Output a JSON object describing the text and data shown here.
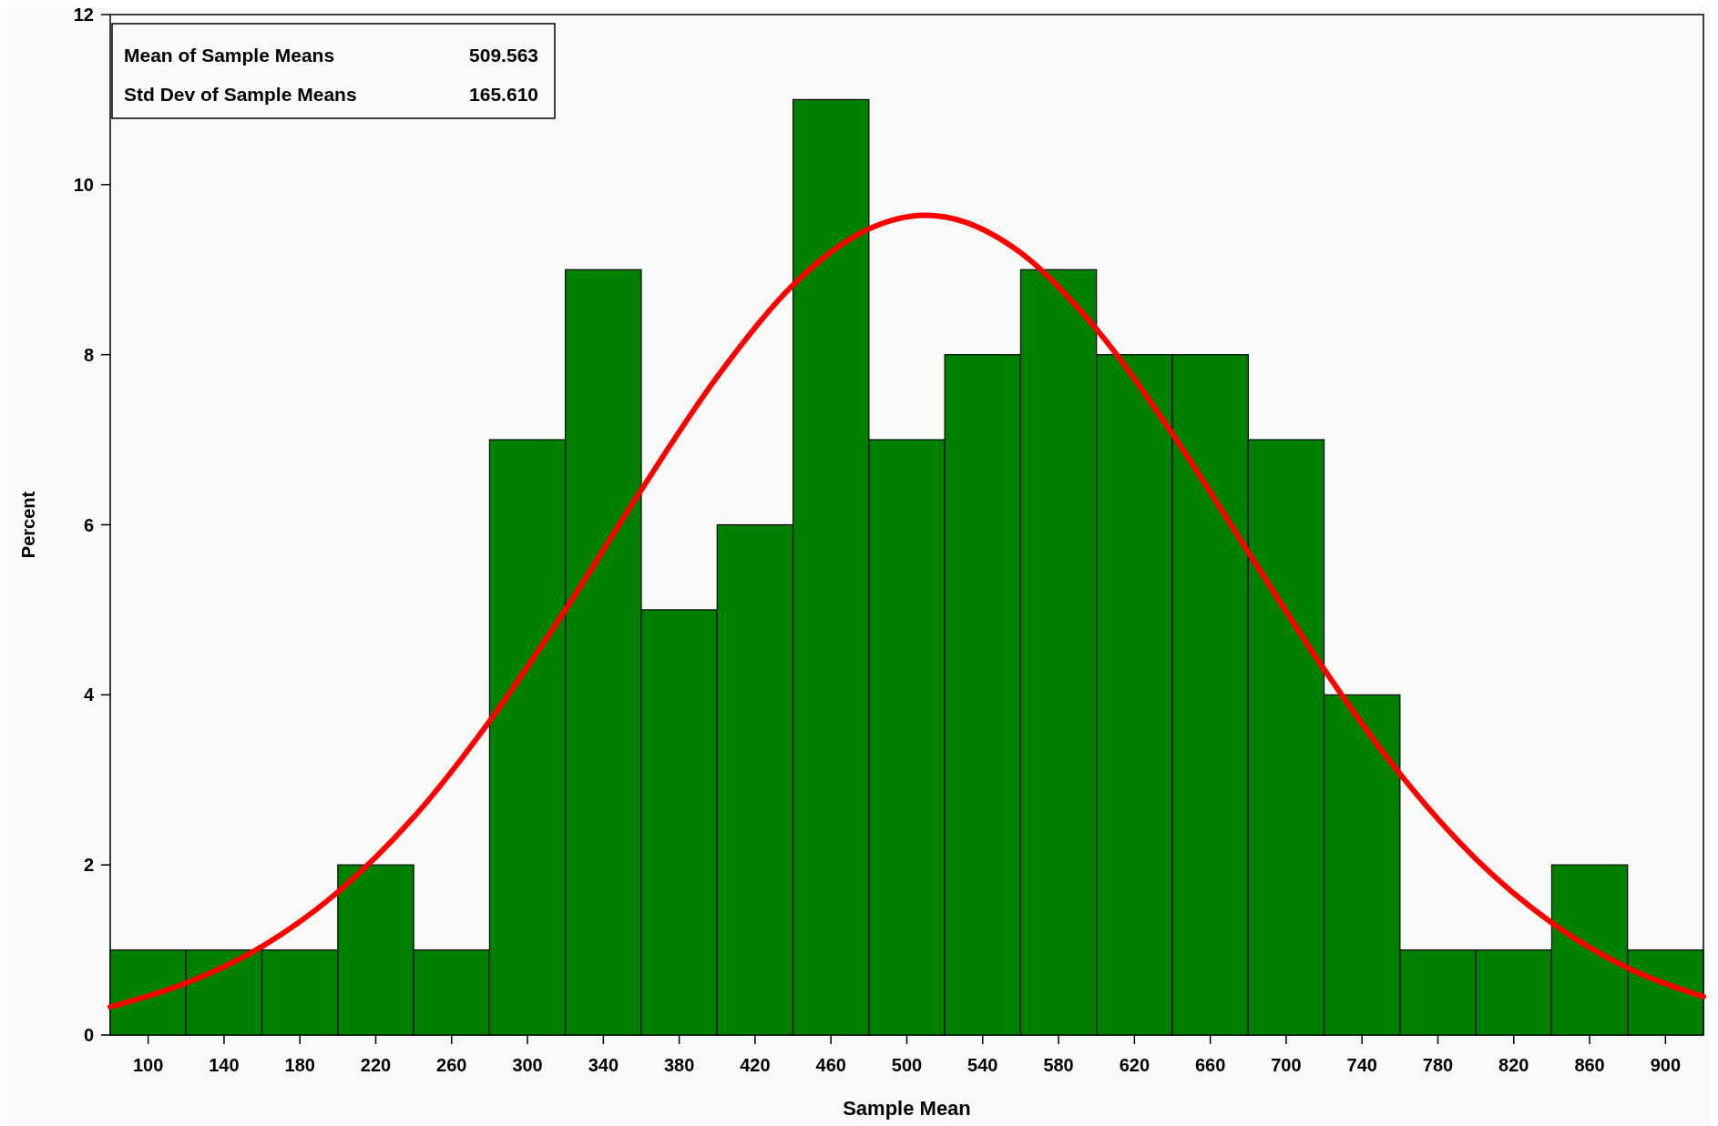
{
  "chart_data": {
    "type": "histogram",
    "xlabel": "Sample Mean",
    "ylabel": "Percent",
    "bins": [
      80,
      120,
      160,
      200,
      240,
      280,
      320,
      360,
      400,
      440,
      480,
      520,
      560,
      600,
      640,
      680,
      720,
      760,
      800,
      840,
      880,
      920
    ],
    "values": [
      1,
      1,
      1,
      2,
      1,
      7,
      9,
      5,
      6,
      11,
      7,
      8,
      9,
      8,
      8,
      7,
      4,
      1,
      1,
      2,
      1
    ],
    "color": "#008000",
    "series": [
      {
        "type": "line",
        "color": "#ff0000",
        "x": [
          80,
          120,
          160,
          200,
          240,
          280,
          320,
          360,
          400,
          440,
          480,
          509.6,
          520,
          560,
          600,
          640,
          680,
          720,
          760,
          800,
          840,
          880,
          920
        ],
        "values": [
          0.33,
          0.61,
          1.04,
          1.68,
          2.56,
          3.69,
          5.0,
          6.41,
          7.74,
          8.82,
          9.48,
          9.64,
          9.62,
          9.2,
          8.3,
          7.07,
          5.68,
          4.3,
          3.07,
          2.07,
          1.32,
          0.79,
          0.45
        ]
      }
    ],
    "xlim": [
      80,
      920
    ],
    "ylim": [
      0,
      12
    ],
    "xticks": [
      100,
      140,
      180,
      220,
      260,
      300,
      340,
      380,
      420,
      460,
      500,
      540,
      580,
      620,
      660,
      700,
      740,
      780,
      820,
      860,
      900
    ],
    "yticks": [
      0,
      2,
      4,
      6,
      8,
      10,
      12
    ],
    "annotations": [
      "Mean of Sample Means",
      "509.563",
      "Std Dev of Sample Means",
      "165.610"
    ]
  }
}
